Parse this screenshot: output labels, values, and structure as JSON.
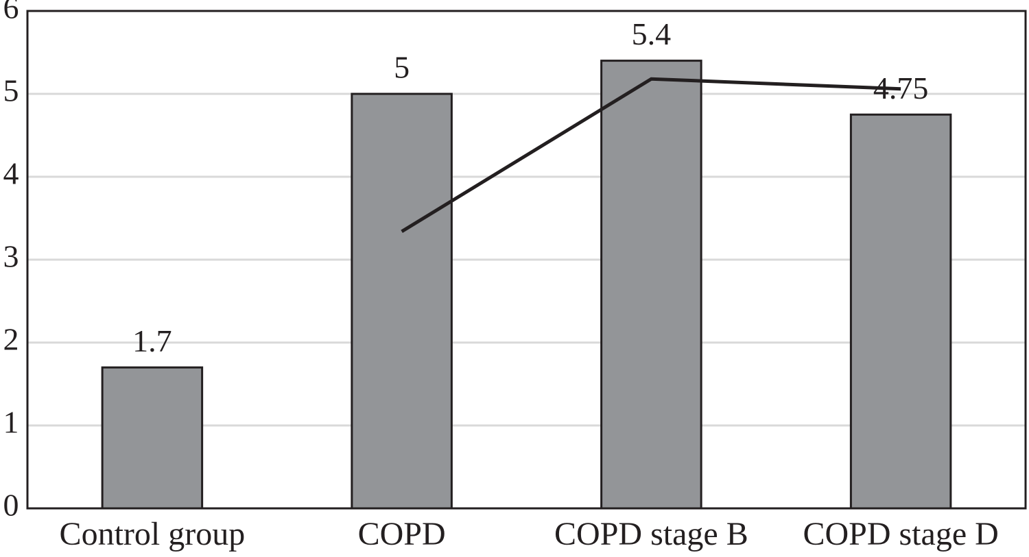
{
  "chart_data": {
    "type": "bar",
    "categories": [
      "Control group",
      "COPD",
      "COPD stage B",
      "COPD stage D"
    ],
    "series": [
      {
        "type": "bar",
        "color": "#939598",
        "values": [
          1.7,
          5,
          5.4,
          4.75
        ]
      },
      {
        "type": "line",
        "color": "#231f20",
        "values": [
          null,
          3.34,
          5.18,
          5.06
        ]
      }
    ],
    "ylim": [
      0,
      6
    ],
    "yticks": [
      0,
      1,
      2,
      3,
      4,
      5,
      6
    ],
    "grid": true
  }
}
